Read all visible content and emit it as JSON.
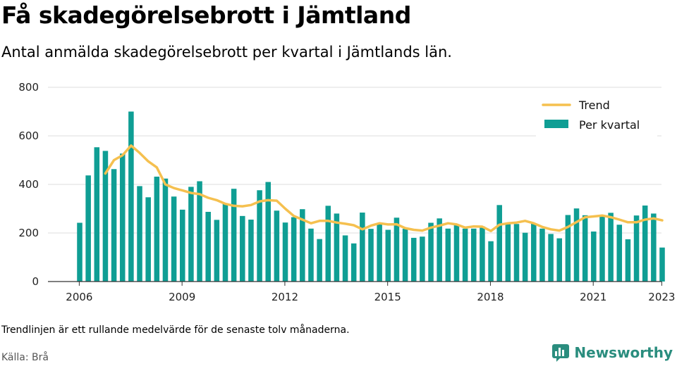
{
  "title": "Få skadegörelsebrott i Jämtland",
  "subtitle": "Antal anmälda skadegörelsebrott per kvartal i Jämtlands län.",
  "note": "Trendlinjen är ett rullande medelvärde för de senaste tolv månaderna.",
  "source": "Källa: Brå",
  "brand": {
    "name": "Newsworthy"
  },
  "colors": {
    "bar": "#0f9e94",
    "trend": "#f5c04f",
    "grid": "#dddddd",
    "axis": "#333333",
    "brand": "#2a8d7e"
  },
  "chart_data": {
    "type": "bar",
    "x": [
      "2006 Q1",
      "2006 Q2",
      "2006 Q3",
      "2006 Q4",
      "2007 Q1",
      "2007 Q2",
      "2007 Q3",
      "2007 Q4",
      "2008 Q1",
      "2008 Q2",
      "2008 Q3",
      "2008 Q4",
      "2009 Q1",
      "2009 Q2",
      "2009 Q3",
      "2009 Q4",
      "2010 Q1",
      "2010 Q2",
      "2010 Q3",
      "2010 Q4",
      "2011 Q1",
      "2011 Q2",
      "2011 Q3",
      "2011 Q4",
      "2012 Q1",
      "2012 Q2",
      "2012 Q3",
      "2012 Q4",
      "2013 Q1",
      "2013 Q2",
      "2013 Q3",
      "2013 Q4",
      "2014 Q1",
      "2014 Q2",
      "2014 Q3",
      "2014 Q4",
      "2015 Q1",
      "2015 Q2",
      "2015 Q3",
      "2015 Q4",
      "2016 Q1",
      "2016 Q2",
      "2016 Q3",
      "2016 Q4",
      "2017 Q1",
      "2017 Q2",
      "2017 Q3",
      "2017 Q4",
      "2018 Q1",
      "2018 Q2",
      "2018 Q3",
      "2018 Q4",
      "2019 Q1",
      "2019 Q2",
      "2019 Q3",
      "2019 Q4",
      "2020 Q1",
      "2020 Q2",
      "2020 Q3",
      "2020 Q4",
      "2021 Q1",
      "2021 Q2",
      "2021 Q3",
      "2021 Q4",
      "2022 Q1",
      "2022 Q2",
      "2022 Q3",
      "2022 Q4",
      "2023 Q1"
    ],
    "series": [
      {
        "name": "Per kvartal",
        "type": "bar",
        "values": [
          242,
          437,
          553,
          538,
          463,
          527,
          700,
          393,
          347,
          432,
          424,
          350,
          296,
          390,
          413,
          287,
          254,
          322,
          382,
          270,
          255,
          376,
          410,
          292,
          243,
          265,
          298,
          218,
          175,
          312,
          280,
          190,
          157,
          284,
          217,
          240,
          213,
          263,
          217,
          180,
          185,
          242,
          260,
          218,
          236,
          218,
          218,
          227,
          166,
          315,
          236,
          237,
          201,
          240,
          218,
          196,
          178,
          274,
          301,
          273,
          206,
          273,
          283,
          234,
          174,
          272,
          313,
          280,
          140
        ]
      },
      {
        "name": "Trend",
        "type": "line",
        "values": [
          null,
          null,
          null,
          445,
          500,
          520,
          560,
          530,
          495,
          470,
          400,
          385,
          375,
          365,
          360,
          345,
          335,
          320,
          312,
          310,
          315,
          330,
          335,
          333,
          300,
          270,
          255,
          240,
          250,
          250,
          243,
          238,
          232,
          215,
          230,
          240,
          235,
          236,
          220,
          213,
          210,
          222,
          230,
          240,
          235,
          222,
          227,
          226,
          208,
          234,
          240,
          243,
          250,
          240,
          225,
          215,
          210,
          225,
          245,
          265,
          268,
          272,
          265,
          255,
          244,
          244,
          255,
          260,
          252
        ]
      }
    ],
    "xticks": [
      "2006",
      "2009",
      "2012",
      "2015",
      "2018",
      "2021",
      "2023"
    ],
    "yticks": [
      0,
      200,
      400,
      600,
      800
    ],
    "ylim": [
      0,
      800
    ],
    "grid": true,
    "legend": "top-right"
  }
}
